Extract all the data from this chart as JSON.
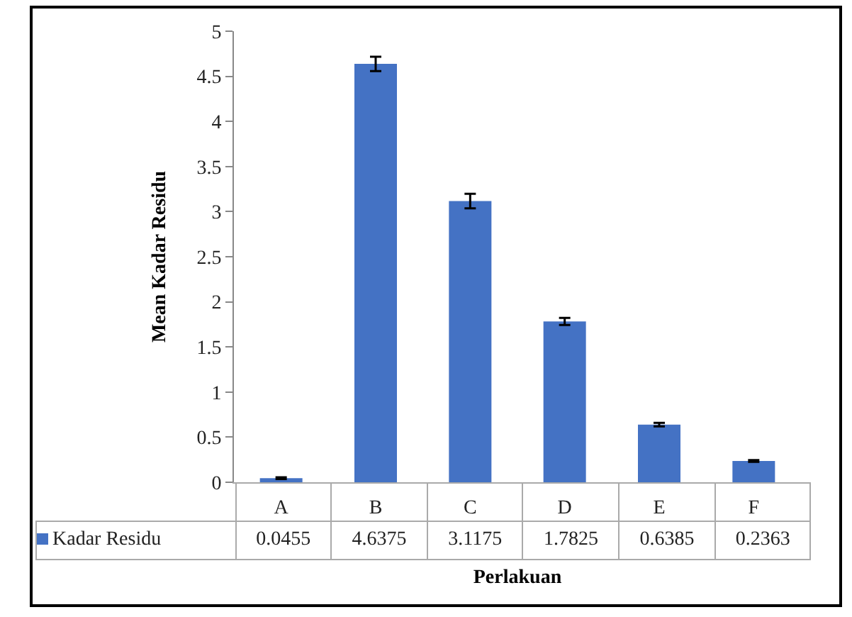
{
  "chart_data": {
    "type": "bar",
    "xlabel": "Perlakuan",
    "ylabel": "Mean Kadar Residu",
    "categories": [
      "A",
      "B",
      "C",
      "D",
      "E",
      "F"
    ],
    "series": [
      {
        "name": "Kadar Residu",
        "color": "#4472c4",
        "values": [
          0.0455,
          4.6375,
          3.1175,
          1.7825,
          0.6385,
          0.2363
        ],
        "errors": [
          0.01,
          0.08,
          0.08,
          0.04,
          0.02,
          0.01
        ]
      }
    ],
    "ylim": [
      0,
      5
    ],
    "yticks": [
      0,
      0.5,
      1,
      1.5,
      2,
      2.5,
      3,
      3.5,
      4,
      4.5,
      5
    ],
    "grid": false,
    "legend": "bottom",
    "data_labels": true
  }
}
